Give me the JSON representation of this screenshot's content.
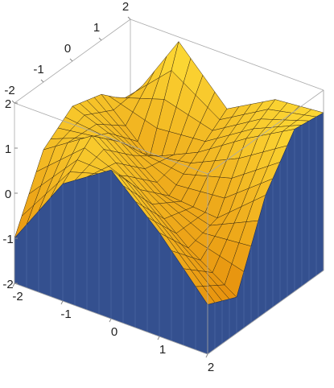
{
  "chart_data": {
    "type": "surface3d",
    "x": [
      -2,
      -1,
      0,
      1,
      2
    ],
    "y": [
      -2,
      -1,
      0,
      1,
      2
    ],
    "z": [
      [
        -1,
        0.6,
        1.3,
        0.3,
        -0.9
      ],
      [
        0.5,
        1.2,
        0.4,
        -0.5,
        -1.2
      ],
      [
        1.0,
        0.6,
        -0.2,
        -0.3,
        0.6
      ],
      [
        0.8,
        -0.2,
        0.3,
        1.0,
        1.6
      ],
      [
        0.2,
        1.9,
        0.8,
        1.4,
        1.5
      ]
    ],
    "xlim": [
      -2,
      2
    ],
    "ylim": [
      -2,
      2
    ],
    "zlim": [
      -2,
      2
    ],
    "xticks": [
      -2,
      -1,
      0,
      1,
      2
    ],
    "yticks": [
      -2,
      -1,
      0,
      1,
      2
    ],
    "zticks": [
      -2,
      -1,
      0,
      1,
      2
    ],
    "surface_colors": [
      "#e07a00",
      "#ffe23a"
    ],
    "filling_color": "#34508f",
    "mesh": true
  }
}
